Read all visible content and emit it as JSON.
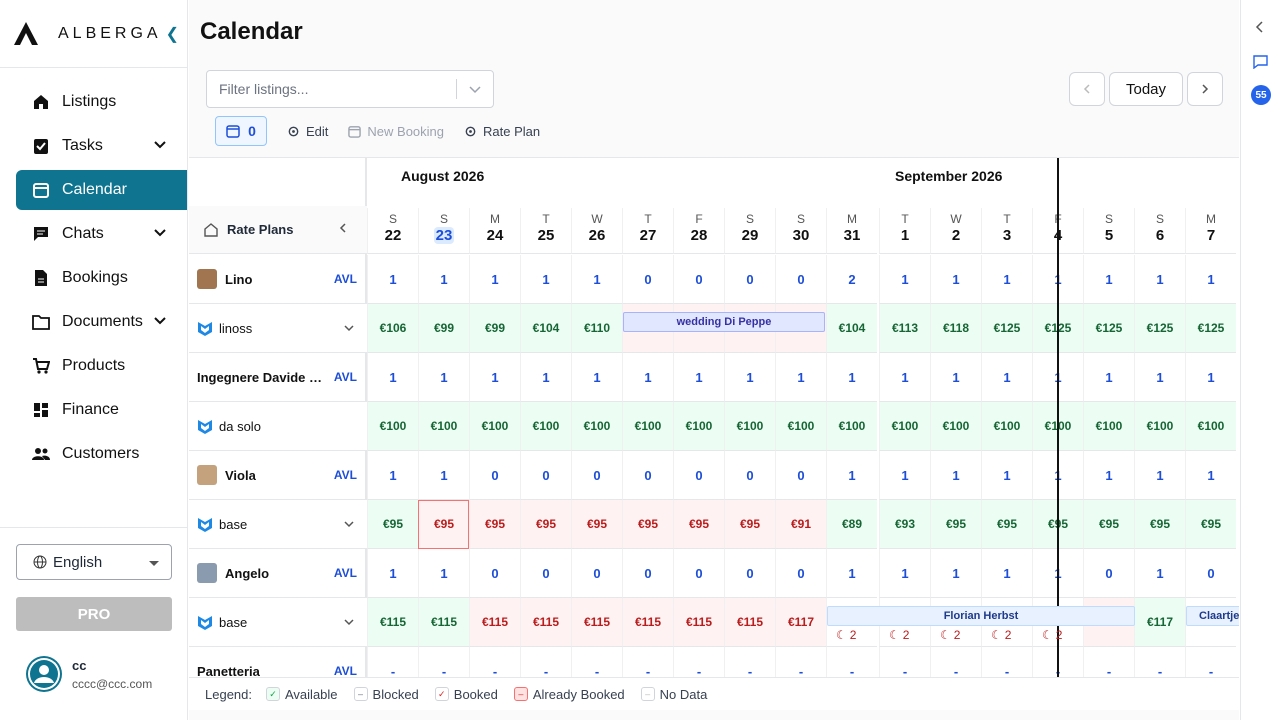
{
  "brand": {
    "name": "ALBERGA"
  },
  "nav": {
    "listings": "Listings",
    "tasks": "Tasks",
    "calendar": "Calendar",
    "chats": "Chats",
    "bookings": "Bookings",
    "documents": "Documents",
    "products": "Products",
    "finance": "Finance",
    "customers": "Customers"
  },
  "language": "English",
  "pro_label": "PRO",
  "user": {
    "name": "cc",
    "email": "cccc@ccc.com"
  },
  "page": {
    "title": "Calendar"
  },
  "filter": {
    "placeholder": "Filter listings..."
  },
  "toolbar": {
    "count": "0",
    "edit": "Edit",
    "new_booking": "New Booking",
    "rate_plan": "Rate Plan"
  },
  "today_label": "Today",
  "months": {
    "aug": "August 2026",
    "sep": "September 2026"
  },
  "rate_plans_label": "Rate Plans",
  "days": [
    {
      "dow": "S",
      "num": "22"
    },
    {
      "dow": "S",
      "num": "23",
      "today": true
    },
    {
      "dow": "M",
      "num": "24"
    },
    {
      "dow": "T",
      "num": "25"
    },
    {
      "dow": "W",
      "num": "26"
    },
    {
      "dow": "T",
      "num": "27"
    },
    {
      "dow": "F",
      "num": "28"
    },
    {
      "dow": "S",
      "num": "29"
    },
    {
      "dow": "S",
      "num": "30"
    },
    {
      "dow": "M",
      "num": "31"
    },
    {
      "dow": "T",
      "num": "1"
    },
    {
      "dow": "W",
      "num": "2"
    },
    {
      "dow": "T",
      "num": "3"
    },
    {
      "dow": "F",
      "num": "4"
    },
    {
      "dow": "S",
      "num": "5"
    },
    {
      "dow": "S",
      "num": "6"
    },
    {
      "dow": "M",
      "num": "7"
    }
  ],
  "rows": [
    {
      "type": "listing",
      "name": "Lino",
      "avl": "AVL",
      "thumb": "#a0754f",
      "values": [
        "1",
        "1",
        "1",
        "1",
        "1",
        "0",
        "0",
        "0",
        "0",
        "2",
        "1",
        "1",
        "1",
        "1",
        "1",
        "1",
        "1"
      ]
    },
    {
      "type": "rate",
      "name": "linoss",
      "values": [
        "€106",
        "€99",
        "€99",
        "€104",
        "€110",
        "",
        "",
        "",
        "",
        "€104",
        "€113",
        "€118",
        "€125",
        "€125",
        "€125",
        "€125",
        "€125"
      ],
      "status": [
        "g",
        "g",
        "g",
        "g",
        "g",
        "r",
        "r",
        "r",
        "r",
        "g",
        "g",
        "g",
        "g",
        "g",
        "g",
        "g",
        "g"
      ]
    },
    {
      "type": "listing",
      "name": "Ingegnere Davide D...",
      "avl": "AVL",
      "thumb": "",
      "values": [
        "1",
        "1",
        "1",
        "1",
        "1",
        "1",
        "1",
        "1",
        "1",
        "1",
        "1",
        "1",
        "1",
        "1",
        "1",
        "1",
        "1"
      ]
    },
    {
      "type": "rate",
      "name": "da solo",
      "nochev": true,
      "values": [
        "€100",
        "€100",
        "€100",
        "€100",
        "€100",
        "€100",
        "€100",
        "€100",
        "€100",
        "€100",
        "€100",
        "€100",
        "€100",
        "€100",
        "€100",
        "€100",
        "€100"
      ],
      "status": [
        "g",
        "g",
        "g",
        "g",
        "g",
        "g",
        "g",
        "g",
        "g",
        "g",
        "g",
        "g",
        "g",
        "g",
        "g",
        "g",
        "g"
      ]
    },
    {
      "type": "listing",
      "name": "Viola",
      "avl": "AVL",
      "thumb": "#c4a27e",
      "values": [
        "1",
        "1",
        "0",
        "0",
        "0",
        "0",
        "0",
        "0",
        "0",
        "1",
        "1",
        "1",
        "1",
        "1",
        "1",
        "1",
        "1"
      ]
    },
    {
      "type": "rate",
      "name": "base",
      "values": [
        "€95",
        "€95",
        "€95",
        "€95",
        "€95",
        "€95",
        "€95",
        "€95",
        "€91",
        "€89",
        "€93",
        "€95",
        "€95",
        "€95",
        "€95",
        "€95",
        "€95"
      ],
      "status": [
        "g",
        "rb",
        "r",
        "r",
        "r",
        "r",
        "r",
        "r",
        "r",
        "g",
        "g",
        "g",
        "g",
        "g",
        "g",
        "g",
        "g"
      ]
    },
    {
      "type": "listing",
      "name": "Angelo",
      "avl": "AVL",
      "thumb": "#8a9bb0",
      "values": [
        "1",
        "1",
        "0",
        "0",
        "0",
        "0",
        "0",
        "0",
        "0",
        "1",
        "1",
        "1",
        "1",
        "1",
        "0",
        "1",
        "0"
      ]
    },
    {
      "type": "rate",
      "name": "base",
      "values": [
        "€115",
        "€115",
        "€115",
        "€115",
        "€115",
        "€115",
        "€115",
        "€115",
        "€117",
        "",
        "",
        "",
        "",
        "",
        "",
        "€117",
        ""
      ],
      "status": [
        "g",
        "g",
        "r",
        "r",
        "r",
        "r",
        "r",
        "r",
        "r",
        "w",
        "w",
        "w",
        "w",
        "w",
        "r",
        "g",
        "w"
      ]
    },
    {
      "type": "listing",
      "name": "Panetteria",
      "avl": "AVL",
      "thumb": "",
      "values": [
        "-",
        "-",
        "-",
        "-",
        "-",
        "-",
        "-",
        "-",
        "-",
        "-",
        "-",
        "-",
        "-",
        "-",
        "-",
        "-",
        "-"
      ]
    }
  ],
  "bookings": [
    {
      "label": "wedding Di Peppe"
    },
    {
      "label": "Florian Herbst"
    },
    {
      "label": "Claartje"
    }
  ],
  "moon_count": "2",
  "legend": {
    "title": "Legend:",
    "available": "Available",
    "blocked": "Blocked",
    "booked": "Booked",
    "already_booked": "Already Booked",
    "no_data": "No Data"
  },
  "rail": {
    "badge": "55"
  },
  "colors": {
    "accent": "#0e7490",
    "blue": "#1d4ed8",
    "green_bg": "#ecfdf3",
    "red_bg": "#fef2f2"
  }
}
